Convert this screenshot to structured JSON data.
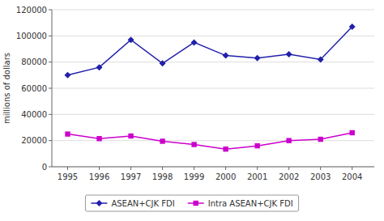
{
  "chart_data": {
    "type": "line",
    "ylabel": "millions of dollars",
    "x": [
      1995,
      1996,
      1997,
      1998,
      1999,
      2000,
      2001,
      2002,
      2003,
      2004
    ],
    "xlim": [
      1994.5,
      2004.7
    ],
    "xticks": [
      1995,
      1996,
      1997,
      1998,
      1999,
      2000,
      2001,
      2002,
      2003,
      2004
    ],
    "ylim": [
      0,
      120000
    ],
    "yticks": [
      0,
      20000,
      40000,
      60000,
      80000,
      100000,
      120000
    ],
    "grid": true,
    "legend": "bottom",
    "series": [
      {
        "name": "ASEAN+CJK FDI",
        "color": "#2020AA",
        "marker": "diamond",
        "values": [
          70000,
          76000,
          97000,
          79000,
          95000,
          85000,
          83000,
          86000,
          82000,
          107000
        ]
      },
      {
        "name": "Intra ASEAN+CJK FDI",
        "color": "#CC00CC",
        "marker": "square",
        "values": [
          25000,
          21500,
          23500,
          19500,
          17000,
          13500,
          16000,
          20000,
          21000,
          26000
        ]
      }
    ]
  }
}
